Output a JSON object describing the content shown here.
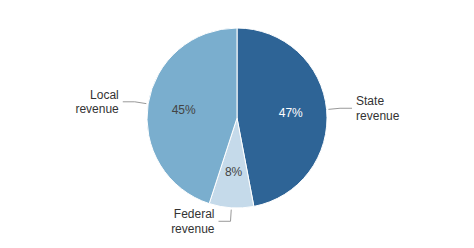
{
  "chart_data": {
    "type": "pie",
    "categories": [
      "State\nrevenue",
      "Federal\nrevenue",
      "Local\nrevenue"
    ],
    "values": [
      47,
      8,
      45
    ],
    "value_labels": [
      "47%",
      "8%",
      "45%"
    ],
    "colors": [
      "#2e6496",
      "#c5daea",
      "#7aaece"
    ],
    "data_labels": true
  }
}
